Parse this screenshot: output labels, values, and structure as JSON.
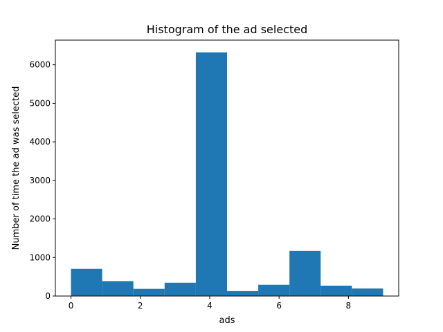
{
  "chart_data": {
    "type": "bar",
    "subtype": "histogram",
    "title": "Histogram of the ad selected",
    "xlabel": "ads",
    "ylabel": "Number of time the ad was selected",
    "bin_edges": [
      0,
      0.9,
      1.8,
      2.7,
      3.6,
      4.5,
      5.4,
      6.3,
      7.2,
      8.1,
      9.0
    ],
    "values": [
      705,
      387,
      186,
      345,
      6323,
      128,
      292,
      1170,
      269,
      195
    ],
    "xlim": [
      -0.45,
      9.45
    ],
    "ylim": [
      0,
      6640
    ],
    "xticks": [
      0,
      2,
      4,
      6,
      8
    ],
    "yticks": [
      0,
      1000,
      2000,
      3000,
      4000,
      5000,
      6000
    ],
    "bar_color": "#1f77b4",
    "grid": false,
    "legend": "none"
  }
}
